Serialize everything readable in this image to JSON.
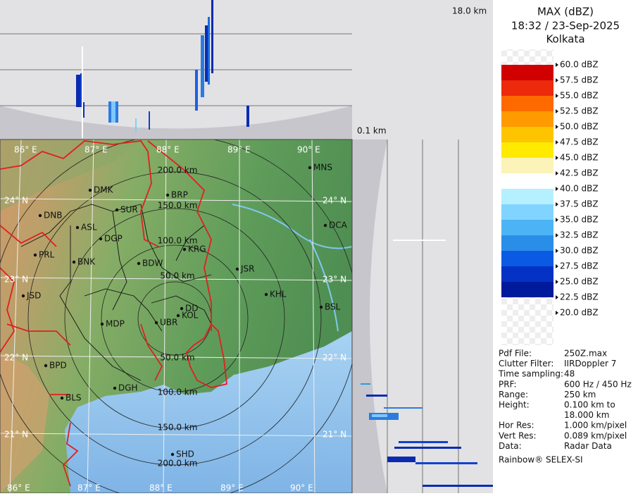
{
  "header": {
    "title": "MAX (dBZ)",
    "time": "18:32 / 23-Sep-2025",
    "station": "Kolkata"
  },
  "profile_labels": {
    "top_height": "18.0 km",
    "bottom_height": "0.1 km"
  },
  "legend": {
    "levels": [
      "60.0 dBZ",
      "57.5 dBZ",
      "55.0 dBZ",
      "52.5 dBZ",
      "50.0 dBZ",
      "47.5 dBZ",
      "45.0 dBZ",
      "42.5 dBZ",
      "40.0 dBZ",
      "37.5 dBZ",
      "35.0 dBZ",
      "32.5 dBZ",
      "30.0 dBZ",
      "27.5 dBZ",
      "25.0 dBZ",
      "22.5 dBZ",
      "20.0 dBZ"
    ],
    "colors": [
      "#a50000",
      "#d00000",
      "#ec2a0c",
      "#ff6a00",
      "#ff9a00",
      "#ffc400",
      "#ffea00",
      "#fbf3b8",
      "#ffffff",
      "#b4f0ff",
      "#80d4ff",
      "#4cb4f4",
      "#2a8ee8",
      "#0a5ae4",
      "#0432c4",
      "#001a9c"
    ]
  },
  "info": {
    "rows": [
      [
        "Pdf File:",
        "250Z.max"
      ],
      [
        "Clutter Filter:",
        "IIRDoppler 7"
      ],
      [
        "Time sampling:",
        "48"
      ],
      [
        "PRF:",
        "600 Hz / 450 Hz"
      ],
      [
        "Range:",
        "250 km"
      ],
      [
        "Height:",
        "0.100 km to",
        "18.000 km"
      ],
      [
        "Hor Res:",
        "1.000 km/pixel"
      ],
      [
        "Vert Res:",
        "0.089 km/pixel"
      ],
      [
        "Data:",
        "Radar Data"
      ]
    ],
    "footer": "Rainbow® SELEX-SI"
  },
  "map": {
    "lon_labels": [
      "86° E",
      "87° E",
      "88° E",
      "89° E",
      "90° E"
    ],
    "lat_labels": [
      "24° N",
      "23° N",
      "22° N",
      "21° N"
    ],
    "ring_labels_north": [
      "50.0 km",
      "100.0 km",
      "150.0 km",
      "200.0 km"
    ],
    "ring_labels_south": [
      "50.0 km",
      "100.0 km",
      "150.0 km",
      "200.0 km"
    ],
    "cities": [
      "MNS",
      "DMK",
      "BRP",
      "SUR",
      "DNB",
      "ASL",
      "DCA",
      "DGP",
      "KRG",
      "PRL",
      "BNK",
      "BDW",
      "JSR",
      "KHL",
      "JSD",
      "BSL",
      "DD",
      "KOL",
      "UBR",
      "MDP",
      "BPD",
      "DGH",
      "BLS",
      "SHD"
    ]
  }
}
